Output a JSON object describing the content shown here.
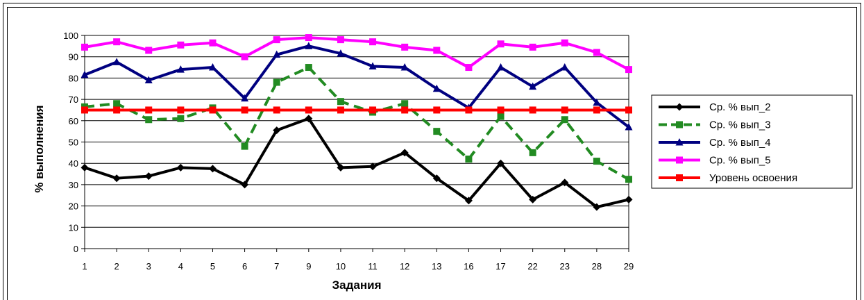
{
  "chart_data": {
    "type": "line",
    "xlabel": "Задания",
    "ylabel": "% выполнения",
    "ylim": [
      0,
      100
    ],
    "yticks": [
      0,
      10,
      20,
      30,
      40,
      50,
      60,
      70,
      80,
      90,
      100
    ],
    "categories": [
      "1",
      "2",
      "3",
      "4",
      "5",
      "6",
      "7",
      "9",
      "10",
      "11",
      "12",
      "13",
      "16",
      "17",
      "22",
      "23",
      "28",
      "29"
    ],
    "grid": "horizontal",
    "legend_position": "right",
    "series": [
      {
        "name": "Ср. % вып_2",
        "color": "#000000",
        "marker": "diamond",
        "dash": "solid",
        "values": [
          38,
          33,
          34,
          38,
          37.5,
          30,
          55.5,
          61,
          38,
          38.5,
          45,
          33,
          22.5,
          40,
          23,
          31,
          19.5,
          23
        ]
      },
      {
        "name": "Ср. % вып_3",
        "color": "#228B22",
        "marker": "square",
        "dash": "dashed",
        "values": [
          66.5,
          68,
          60.5,
          61,
          66,
          48,
          78,
          85,
          69,
          64,
          68,
          55,
          42,
          62,
          45,
          60.5,
          41,
          32.5
        ]
      },
      {
        "name": "Ср. % вып_4",
        "color": "#000080",
        "marker": "triangle",
        "dash": "solid",
        "values": [
          81.5,
          87.5,
          79,
          84,
          85,
          70.5,
          91,
          95,
          91.5,
          85.5,
          85,
          75,
          66,
          85,
          76,
          85,
          68.5,
          57
        ]
      },
      {
        "name": "Ср. % вып_5",
        "color": "#FF00FF",
        "marker": "square",
        "dash": "solid",
        "values": [
          94.5,
          97,
          93,
          95.5,
          96.5,
          90,
          98,
          99,
          98,
          97,
          94.5,
          93,
          85,
          96,
          94.5,
          96.5,
          92,
          84
        ]
      },
      {
        "name": "Уровень освоения",
        "color": "#FF0000",
        "marker": "square",
        "dash": "solid",
        "values": [
          65,
          65,
          65,
          65,
          65,
          65,
          65,
          65,
          65,
          65,
          65,
          65,
          65,
          65,
          65,
          65,
          65,
          65
        ]
      }
    ]
  }
}
